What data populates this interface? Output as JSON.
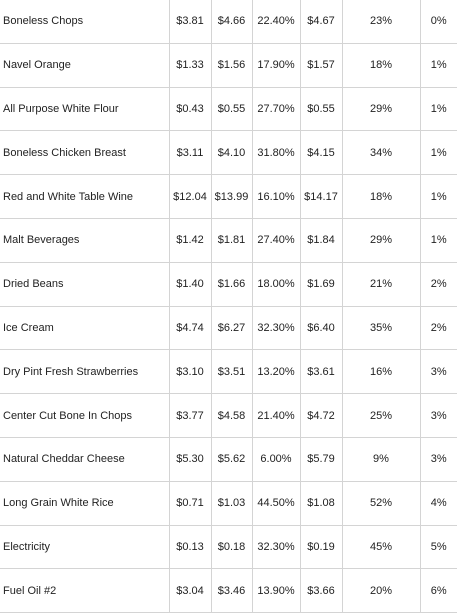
{
  "table": {
    "rows": [
      {
        "item": "Boneless Chops",
        "c1": "$3.81",
        "c2": "$4.66",
        "c3": "22.40%",
        "c4": "$4.67",
        "c5": "23%",
        "c6": "0%"
      },
      {
        "item": "Navel Orange",
        "c1": "$1.33",
        "c2": "$1.56",
        "c3": "17.90%",
        "c4": "$1.57",
        "c5": "18%",
        "c6": "1%"
      },
      {
        "item": "All Purpose White Flour",
        "c1": "$0.43",
        "c2": "$0.55",
        "c3": "27.70%",
        "c4": "$0.55",
        "c5": "29%",
        "c6": "1%"
      },
      {
        "item": "Boneless Chicken Breast",
        "c1": "$3.11",
        "c2": "$4.10",
        "c3": "31.80%",
        "c4": "$4.15",
        "c5": "34%",
        "c6": "1%"
      },
      {
        "item": "Red and White Table Wine",
        "c1": "$12.04",
        "c2": "$13.99",
        "c3": "16.10%",
        "c4": "$14.17",
        "c5": "18%",
        "c6": "1%"
      },
      {
        "item": "Malt Beverages",
        "c1": "$1.42",
        "c2": "$1.81",
        "c3": "27.40%",
        "c4": "$1.84",
        "c5": "29%",
        "c6": "1%"
      },
      {
        "item": "Dried Beans",
        "c1": "$1.40",
        "c2": "$1.66",
        "c3": "18.00%",
        "c4": "$1.69",
        "c5": "21%",
        "c6": "2%"
      },
      {
        "item": "Ice Cream",
        "c1": "$4.74",
        "c2": "$6.27",
        "c3": "32.30%",
        "c4": "$6.40",
        "c5": "35%",
        "c6": "2%"
      },
      {
        "item": "Dry Pint Fresh Strawberries",
        "c1": "$3.10",
        "c2": "$3.51",
        "c3": "13.20%",
        "c4": "$3.61",
        "c5": "16%",
        "c6": "3%"
      },
      {
        "item": "Center Cut Bone In Chops",
        "c1": "$3.77",
        "c2": "$4.58",
        "c3": "21.40%",
        "c4": "$4.72",
        "c5": "25%",
        "c6": "3%"
      },
      {
        "item": "Natural Cheddar Cheese",
        "c1": "$5.30",
        "c2": "$5.62",
        "c3": "6.00%",
        "c4": "$5.79",
        "c5": "9%",
        "c6": "3%"
      },
      {
        "item": "Long Grain White Rice",
        "c1": "$0.71",
        "c2": "$1.03",
        "c3": "44.50%",
        "c4": "$1.08",
        "c5": "52%",
        "c6": "4%"
      },
      {
        "item": "Electricity",
        "c1": "$0.13",
        "c2": "$0.18",
        "c3": "32.30%",
        "c4": "$0.19",
        "c5": "45%",
        "c6": "5%"
      },
      {
        "item": "Fuel Oil #2",
        "c1": "$3.04",
        "c2": "$3.46",
        "c3": "13.90%",
        "c4": "$3.66",
        "c5": "20%",
        "c6": "6%"
      }
    ]
  }
}
